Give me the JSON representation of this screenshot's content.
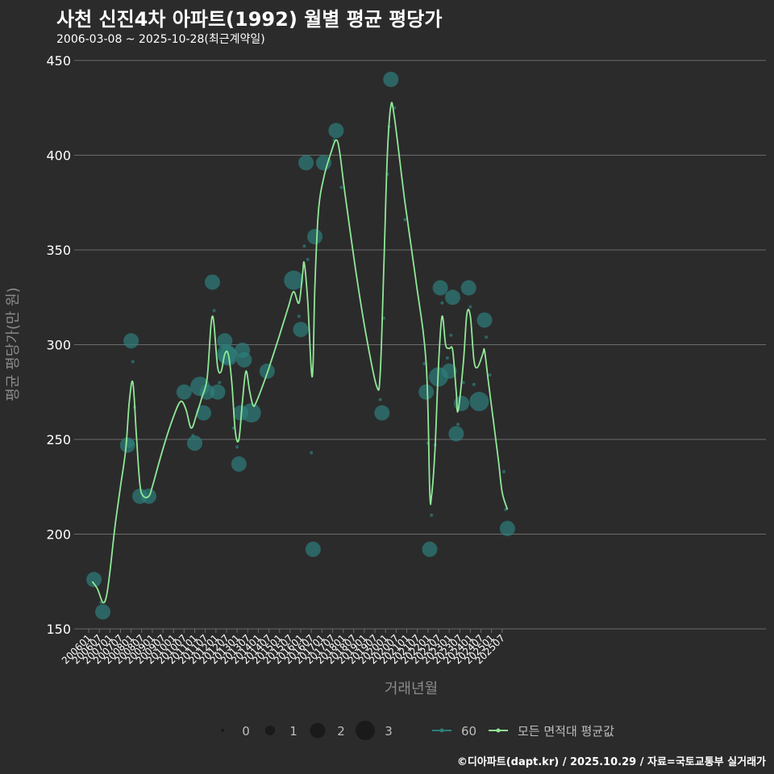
{
  "title": "사천 신진4차 아파트(1992) 월별 평균 평당가",
  "subtitle": "2006-03-08 ~ 2025-10-28(최근계약일)",
  "footer": "©디아파트(dapt.kr) / 2025.10.29 / 자료=국토교통부 실거래가",
  "colors": {
    "background": "#2b2b2c",
    "grid": "#6b6b6b",
    "point": "#2e7f7a",
    "line": "#90e896",
    "text": "#ffffff",
    "axis_title": "#8a8a8a"
  },
  "chart_data": {
    "type": "scatter",
    "title": "사천 신진4차 아파트(1992) 월별 평균 평당가",
    "xlabel": "거래년월",
    "ylabel": "평균 평당가(만 원)",
    "ylim": [
      150,
      450
    ],
    "yticks": [
      150,
      200,
      250,
      300,
      350,
      400,
      450
    ],
    "xticks": [
      "200601",
      "200607",
      "200701",
      "200707",
      "200801",
      "200807",
      "200901",
      "200907",
      "201001",
      "201007",
      "201101",
      "201107",
      "201201",
      "201207",
      "201301",
      "201307",
      "201401",
      "201407",
      "201501",
      "201507",
      "201601",
      "201607",
      "201701",
      "201707",
      "201801",
      "201807",
      "201901",
      "201907",
      "202001",
      "202007",
      "202101",
      "202107",
      "202201",
      "202207",
      "202301",
      "202307",
      "202401",
      "202407",
      "202501",
      "202507"
    ],
    "size_legend": {
      "labels": [
        "0",
        "1",
        "2",
        "3"
      ]
    },
    "series": [
      {
        "name": "60",
        "kind": "points",
        "points": [
          {
            "x": "200604",
            "y": 176,
            "n": 2
          },
          {
            "x": "200608",
            "y": 164,
            "n": 0
          },
          {
            "x": "200609",
            "y": 159,
            "n": 2
          },
          {
            "x": "200711",
            "y": 247,
            "n": 2
          },
          {
            "x": "200712",
            "y": 248,
            "n": 1
          },
          {
            "x": "200801",
            "y": 302,
            "n": 2
          },
          {
            "x": "200802",
            "y": 291,
            "n": 0
          },
          {
            "x": "200803",
            "y": 267,
            "n": 0
          },
          {
            "x": "200806",
            "y": 220,
            "n": 2
          },
          {
            "x": "200811",
            "y": 220,
            "n": 2
          },
          {
            "x": "201007",
            "y": 275,
            "n": 2
          },
          {
            "x": "201012",
            "y": 252,
            "n": 0
          },
          {
            "x": "201101",
            "y": 248,
            "n": 2
          },
          {
            "x": "201104",
            "y": 278,
            "n": 3
          },
          {
            "x": "201106",
            "y": 264,
            "n": 2
          },
          {
            "x": "201108",
            "y": 275,
            "n": 2
          },
          {
            "x": "201111",
            "y": 333,
            "n": 2
          },
          {
            "x": "201112",
            "y": 318,
            "n": 0
          },
          {
            "x": "201202",
            "y": 275,
            "n": 2
          },
          {
            "x": "201203",
            "y": 280,
            "n": 0
          },
          {
            "x": "201206",
            "y": 302,
            "n": 2
          },
          {
            "x": "201207",
            "y": 295,
            "n": 3
          },
          {
            "x": "201208",
            "y": 294,
            "n": 3
          },
          {
            "x": "201211",
            "y": 256,
            "n": 0
          },
          {
            "x": "201301",
            "y": 246,
            "n": 0
          },
          {
            "x": "201302",
            "y": 237,
            "n": 2
          },
          {
            "x": "201303",
            "y": 264,
            "n": 2
          },
          {
            "x": "201304",
            "y": 297,
            "n": 2
          },
          {
            "x": "201305",
            "y": 292,
            "n": 2
          },
          {
            "x": "201309",
            "y": 264,
            "n": 3
          },
          {
            "x": "201406",
            "y": 286,
            "n": 2
          },
          {
            "x": "201509",
            "y": 334,
            "n": 3
          },
          {
            "x": "201512",
            "y": 315,
            "n": 0
          },
          {
            "x": "201601",
            "y": 308,
            "n": 2
          },
          {
            "x": "201603",
            "y": 352,
            "n": 0
          },
          {
            "x": "201604",
            "y": 396,
            "n": 2
          },
          {
            "x": "201605",
            "y": 345,
            "n": 0
          },
          {
            "x": "201607",
            "y": 243,
            "n": 0
          },
          {
            "x": "201608",
            "y": 192,
            "n": 2
          },
          {
            "x": "201609",
            "y": 357,
            "n": 2
          },
          {
            "x": "201702",
            "y": 396,
            "n": 2
          },
          {
            "x": "201708",
            "y": 408,
            "n": 0
          },
          {
            "x": "201709",
            "y": 413,
            "n": 2
          },
          {
            "x": "201712",
            "y": 383,
            "n": 0
          },
          {
            "x": "201910",
            "y": 271,
            "n": 0
          },
          {
            "x": "201911",
            "y": 264,
            "n": 2
          },
          {
            "x": "201912",
            "y": 314,
            "n": 0
          },
          {
            "x": "202002",
            "y": 390,
            "n": 0
          },
          {
            "x": "202003",
            "y": 415,
            "n": 0
          },
          {
            "x": "202004",
            "y": 440,
            "n": 2
          },
          {
            "x": "202006",
            "y": 425,
            "n": 0
          },
          {
            "x": "202012",
            "y": 366,
            "n": 0
          },
          {
            "x": "202111",
            "y": 290,
            "n": 0
          },
          {
            "x": "202112",
            "y": 275,
            "n": 2
          },
          {
            "x": "202201",
            "y": 248,
            "n": 0
          },
          {
            "x": "202202",
            "y": 192,
            "n": 2
          },
          {
            "x": "202203",
            "y": 210,
            "n": 0
          },
          {
            "x": "202205",
            "y": 247,
            "n": 0
          },
          {
            "x": "202207",
            "y": 283,
            "n": 3
          },
          {
            "x": "202208",
            "y": 330,
            "n": 2
          },
          {
            "x": "202209",
            "y": 322,
            "n": 0
          },
          {
            "x": "202212",
            "y": 293,
            "n": 0
          },
          {
            "x": "202301",
            "y": 286,
            "n": 2
          },
          {
            "x": "202302",
            "y": 305,
            "n": 0
          },
          {
            "x": "202303",
            "y": 325,
            "n": 2
          },
          {
            "x": "202305",
            "y": 253,
            "n": 2
          },
          {
            "x": "202306",
            "y": 258,
            "n": 0
          },
          {
            "x": "202308",
            "y": 269,
            "n": 2
          },
          {
            "x": "202309",
            "y": 280,
            "n": 0
          },
          {
            "x": "202312",
            "y": 330,
            "n": 2
          },
          {
            "x": "202401",
            "y": 320,
            "n": 0
          },
          {
            "x": "202403",
            "y": 279,
            "n": 0
          },
          {
            "x": "202406",
            "y": 270,
            "n": 3
          },
          {
            "x": "202409",
            "y": 313,
            "n": 2
          },
          {
            "x": "202410",
            "y": 304,
            "n": 0
          },
          {
            "x": "202412",
            "y": 284,
            "n": 0
          },
          {
            "x": "202508",
            "y": 233,
            "n": 0
          },
          {
            "x": "202509",
            "y": 213,
            "n": 0
          },
          {
            "x": "202510",
            "y": 203,
            "n": 2
          }
        ]
      },
      {
        "name": "모든 면적대 평균값",
        "kind": "smooth_line",
        "points": [
          {
            "x": "200603",
            "y": 175
          },
          {
            "x": "200606",
            "y": 171
          },
          {
            "x": "200609",
            "y": 164
          },
          {
            "x": "200611",
            "y": 167
          },
          {
            "x": "200701",
            "y": 180
          },
          {
            "x": "200704",
            "y": 205
          },
          {
            "x": "200707",
            "y": 225
          },
          {
            "x": "200710",
            "y": 245
          },
          {
            "x": "200712",
            "y": 270
          },
          {
            "x": "200802",
            "y": 280
          },
          {
            "x": "200804",
            "y": 252
          },
          {
            "x": "200806",
            "y": 226
          },
          {
            "x": "200808",
            "y": 220
          },
          {
            "x": "200811",
            "y": 220
          },
          {
            "x": "200901",
            "y": 225
          },
          {
            "x": "200907",
            "y": 245
          },
          {
            "x": "201001",
            "y": 262
          },
          {
            "x": "201005",
            "y": 270
          },
          {
            "x": "201008",
            "y": 266
          },
          {
            "x": "201011",
            "y": 256
          },
          {
            "x": "201102",
            "y": 263
          },
          {
            "x": "201105",
            "y": 272
          },
          {
            "x": "201108",
            "y": 282
          },
          {
            "x": "201110",
            "y": 308
          },
          {
            "x": "201111",
            "y": 315
          },
          {
            "x": "201112",
            "y": 310
          },
          {
            "x": "201202",
            "y": 288
          },
          {
            "x": "201204",
            "y": 286
          },
          {
            "x": "201206",
            "y": 295
          },
          {
            "x": "201208",
            "y": 295
          },
          {
            "x": "201210",
            "y": 280
          },
          {
            "x": "201212",
            "y": 254
          },
          {
            "x": "201302",
            "y": 250
          },
          {
            "x": "201304",
            "y": 270
          },
          {
            "x": "201306",
            "y": 286
          },
          {
            "x": "201308",
            "y": 276
          },
          {
            "x": "201310",
            "y": 268
          },
          {
            "x": "201312",
            "y": 270
          },
          {
            "x": "201406",
            "y": 285
          },
          {
            "x": "201412",
            "y": 302
          },
          {
            "x": "201506",
            "y": 320
          },
          {
            "x": "201509",
            "y": 328
          },
          {
            "x": "201512",
            "y": 322
          },
          {
            "x": "201602",
            "y": 337
          },
          {
            "x": "201603",
            "y": 343
          },
          {
            "x": "201605",
            "y": 322
          },
          {
            "x": "201607",
            "y": 286
          },
          {
            "x": "201608",
            "y": 290
          },
          {
            "x": "201609",
            "y": 330
          },
          {
            "x": "201611",
            "y": 370
          },
          {
            "x": "201702",
            "y": 388
          },
          {
            "x": "201706",
            "y": 401
          },
          {
            "x": "201709",
            "y": 408
          },
          {
            "x": "201711",
            "y": 402
          },
          {
            "x": "201802",
            "y": 380
          },
          {
            "x": "201808",
            "y": 340
          },
          {
            "x": "201902",
            "y": 305
          },
          {
            "x": "201908",
            "y": 278
          },
          {
            "x": "201910",
            "y": 285
          },
          {
            "x": "201912",
            "y": 340
          },
          {
            "x": "202002",
            "y": 400
          },
          {
            "x": "202004",
            "y": 426
          },
          {
            "x": "202006",
            "y": 420
          },
          {
            "x": "202012",
            "y": 375
          },
          {
            "x": "202106",
            "y": 335
          },
          {
            "x": "202112",
            "y": 290
          },
          {
            "x": "202202",
            "y": 223
          },
          {
            "x": "202203",
            "y": 220
          },
          {
            "x": "202205",
            "y": 245
          },
          {
            "x": "202207",
            "y": 290
          },
          {
            "x": "202209",
            "y": 315
          },
          {
            "x": "202211",
            "y": 300
          },
          {
            "x": "202301",
            "y": 298
          },
          {
            "x": "202303",
            "y": 297
          },
          {
            "x": "202305",
            "y": 275
          },
          {
            "x": "202306",
            "y": 265
          },
          {
            "x": "202309",
            "y": 290
          },
          {
            "x": "202311",
            "y": 316
          },
          {
            "x": "202401",
            "y": 315
          },
          {
            "x": "202403",
            "y": 292
          },
          {
            "x": "202405",
            "y": 288
          },
          {
            "x": "202408",
            "y": 295
          },
          {
            "x": "202409",
            "y": 297
          },
          {
            "x": "202411",
            "y": 282
          },
          {
            "x": "202502",
            "y": 260
          },
          {
            "x": "202505",
            "y": 238
          },
          {
            "x": "202507",
            "y": 222
          },
          {
            "x": "202510",
            "y": 213
          }
        ]
      }
    ]
  }
}
